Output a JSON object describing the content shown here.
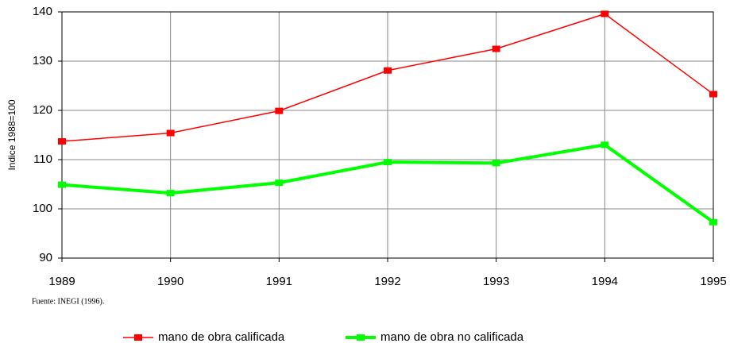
{
  "chart_data": {
    "type": "line",
    "y_label": "Indice 1988=100",
    "source": "Fuente: INEGI (1996).",
    "categories": [
      "1989",
      "1990",
      "1991",
      "1992",
      "1993",
      "1994",
      "1995"
    ],
    "series": [
      {
        "name": "mano de obra calificada",
        "color": "#ff0000",
        "width": 1.5,
        "values": [
          113.7,
          115.4,
          119.9,
          128.1,
          132.5,
          139.6,
          123.3
        ]
      },
      {
        "name": "mano de obra no calificada",
        "color": "#00ff00",
        "width": 4,
        "values": [
          104.9,
          103.2,
          105.3,
          109.5,
          109.3,
          113.0,
          97.3
        ]
      }
    ],
    "ylim": [
      90,
      140
    ],
    "yticks": [
      90,
      100,
      110,
      120,
      130,
      140
    ],
    "grid": true
  }
}
